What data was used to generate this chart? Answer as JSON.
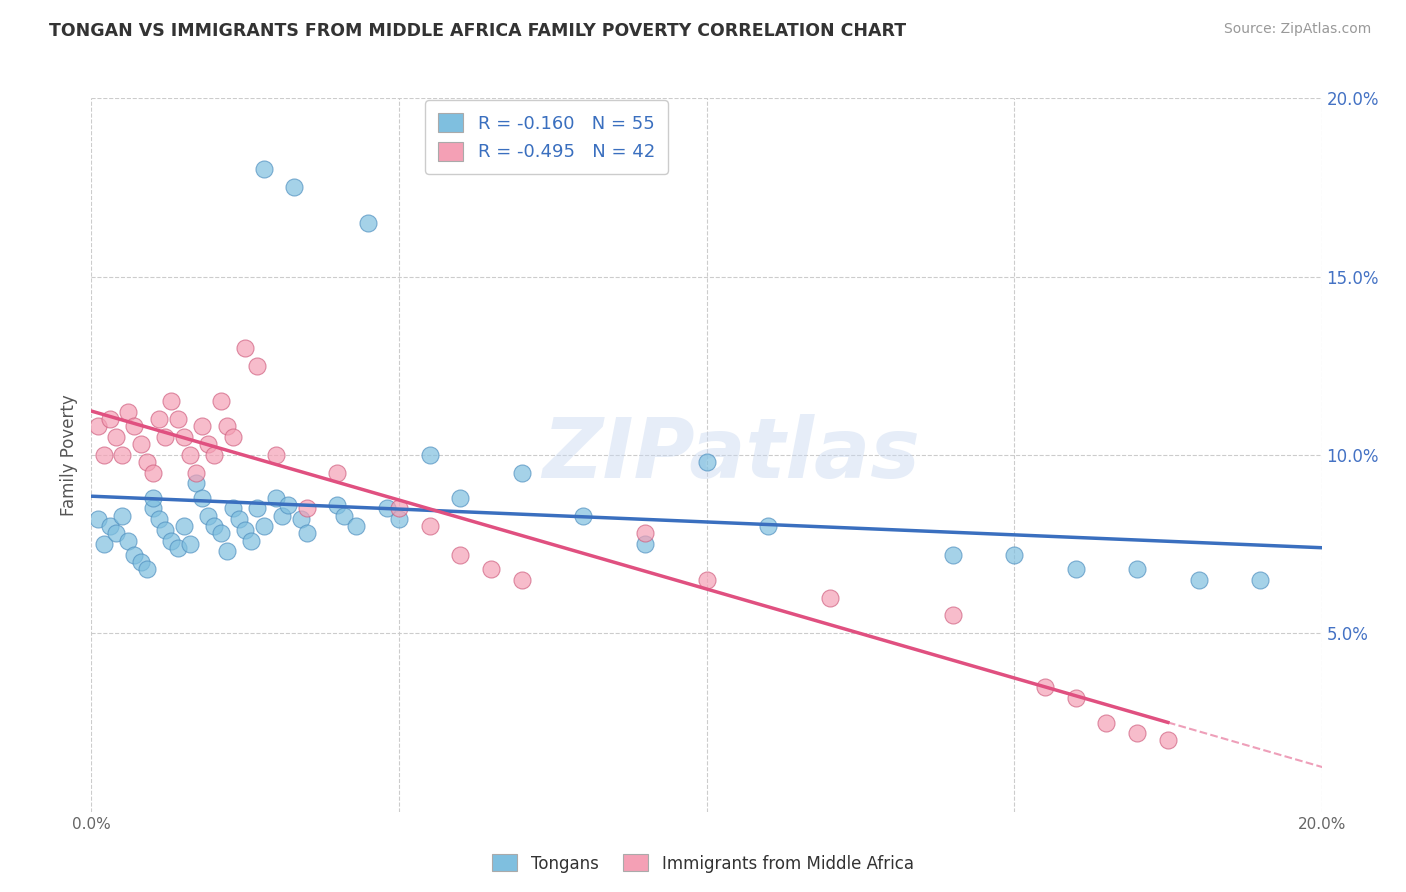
{
  "title": "TONGAN VS IMMIGRANTS FROM MIDDLE AFRICA FAMILY POVERTY CORRELATION CHART",
  "source": "Source: ZipAtlas.com",
  "ylabel": "Family Poverty",
  "xlim": [
    0.0,
    0.2
  ],
  "ylim": [
    0.0,
    0.2
  ],
  "yticks": [
    0.05,
    0.1,
    0.15,
    0.2
  ],
  "ytick_labels": [
    "5.0%",
    "10.0%",
    "15.0%",
    "20.0%"
  ],
  "xticks": [
    0.0,
    0.05,
    0.1,
    0.15,
    0.2
  ],
  "xtick_labels": [
    "0.0%",
    "",
    "",
    "",
    "20.0%"
  ],
  "blue_R": -0.16,
  "blue_N": 55,
  "pink_R": -0.495,
  "pink_N": 42,
  "blue_color": "#7fbfdf",
  "pink_color": "#f4a0b5",
  "blue_line_color": "#3a6fbf",
  "pink_line_color": "#e05080",
  "watermark": "ZIPatlas",
  "legend_label_blue": "Tongans",
  "legend_label_pink": "Immigrants from Middle Africa",
  "blue_x": [
    0.001,
    0.002,
    0.003,
    0.004,
    0.005,
    0.006,
    0.007,
    0.008,
    0.009,
    0.01,
    0.01,
    0.011,
    0.012,
    0.013,
    0.014,
    0.015,
    0.016,
    0.017,
    0.018,
    0.019,
    0.02,
    0.021,
    0.022,
    0.023,
    0.024,
    0.025,
    0.026,
    0.027,
    0.028,
    0.03,
    0.031,
    0.032,
    0.034,
    0.035,
    0.04,
    0.041,
    0.043,
    0.045,
    0.048,
    0.05,
    0.055,
    0.06,
    0.07,
    0.08,
    0.09,
    0.1,
    0.11,
    0.14,
    0.15,
    0.16,
    0.17,
    0.18,
    0.19,
    0.028,
    0.033
  ],
  "blue_y": [
    0.082,
    0.075,
    0.08,
    0.078,
    0.083,
    0.076,
    0.072,
    0.07,
    0.068,
    0.085,
    0.088,
    0.082,
    0.079,
    0.076,
    0.074,
    0.08,
    0.075,
    0.092,
    0.088,
    0.083,
    0.08,
    0.078,
    0.073,
    0.085,
    0.082,
    0.079,
    0.076,
    0.085,
    0.08,
    0.088,
    0.083,
    0.086,
    0.082,
    0.078,
    0.086,
    0.083,
    0.08,
    0.165,
    0.085,
    0.082,
    0.1,
    0.088,
    0.095,
    0.083,
    0.075,
    0.098,
    0.08,
    0.072,
    0.072,
    0.068,
    0.068,
    0.065,
    0.065,
    0.18,
    0.175
  ],
  "pink_x": [
    0.001,
    0.002,
    0.003,
    0.004,
    0.005,
    0.006,
    0.007,
    0.008,
    0.009,
    0.01,
    0.011,
    0.012,
    0.013,
    0.014,
    0.015,
    0.016,
    0.017,
    0.018,
    0.019,
    0.02,
    0.021,
    0.022,
    0.023,
    0.025,
    0.027,
    0.03,
    0.035,
    0.04,
    0.05,
    0.055,
    0.06,
    0.065,
    0.07,
    0.09,
    0.1,
    0.12,
    0.14,
    0.155,
    0.16,
    0.165,
    0.17,
    0.175
  ],
  "pink_y": [
    0.108,
    0.1,
    0.11,
    0.105,
    0.1,
    0.112,
    0.108,
    0.103,
    0.098,
    0.095,
    0.11,
    0.105,
    0.115,
    0.11,
    0.105,
    0.1,
    0.095,
    0.108,
    0.103,
    0.1,
    0.115,
    0.108,
    0.105,
    0.13,
    0.125,
    0.1,
    0.085,
    0.095,
    0.085,
    0.08,
    0.072,
    0.068,
    0.065,
    0.078,
    0.065,
    0.06,
    0.055,
    0.035,
    0.032,
    0.025,
    0.022,
    0.02
  ]
}
